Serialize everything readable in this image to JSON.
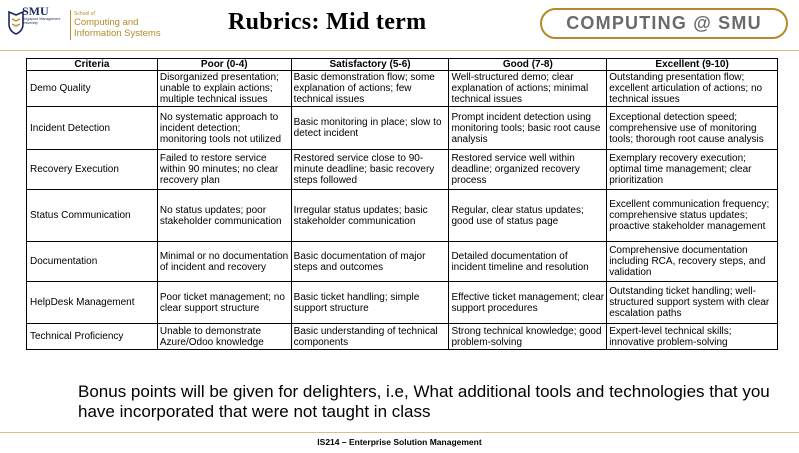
{
  "header": {
    "logo_text": "SMU",
    "logo_university": "Singapore Management University",
    "school_small": "School of",
    "school_name_line1": "Computing and",
    "school_name_line2": "Information Systems",
    "title": "Rubrics: Mid term",
    "badge": "COMPUTING @ SMU",
    "accent_color": "#b48a2b"
  },
  "table": {
    "headers": [
      "Criteria",
      "Poor (0-4)",
      "Satisfactory (5-6)",
      "Good (7-8)",
      "Excellent (9-10)"
    ],
    "rows": [
      {
        "criteria": "Demo Quality",
        "poor": "Disorganized presentation; unable to explain actions; multiple technical issues",
        "satisfactory": "Basic demonstration flow; some explanation of actions; few technical issues",
        "good": "Well-structured demo; clear explanation of actions; minimal technical issues",
        "excellent": "Outstanding presentation flow; excellent articulation of actions; no technical issues"
      },
      {
        "criteria": "Incident Detection",
        "poor": "No systematic approach to incident detection; monitoring tools not utilized",
        "satisfactory": "Basic monitoring in place; slow to detect incident",
        "good": "Prompt incident detection using monitoring tools; basic root cause analysis",
        "excellent": "Exceptional detection speed; comprehensive use of monitoring tools; thorough root cause analysis"
      },
      {
        "criteria": "Recovery Execution",
        "poor": "Failed to restore service within 90 minutes; no clear recovery plan",
        "satisfactory": "Restored service close to 90-minute deadline; basic recovery steps followed",
        "good": "Restored service well within deadline; organized recovery process",
        "excellent": "Exemplary recovery execution; optimal time management; clear prioritization"
      },
      {
        "criteria": "Status Communication",
        "poor": "No status updates; poor stakeholder communication",
        "satisfactory": "Irregular status updates; basic stakeholder communication",
        "good": "Regular, clear status updates; good use of status page",
        "excellent": "Excellent communication frequency; comprehensive status updates; proactive stakeholder management"
      },
      {
        "criteria": "Documentation",
        "poor": "Minimal or no documentation of incident and recovery",
        "satisfactory": "Basic documentation of major steps and outcomes",
        "good": "Detailed documentation of incident timeline and resolution",
        "excellent": "Comprehensive documentation including RCA, recovery steps, and validation"
      },
      {
        "criteria": "HelpDesk Management",
        "poor": "Poor ticket management; no clear support structure",
        "satisfactory": "Basic ticket handling; simple support structure",
        "good": "Effective ticket management; clear support procedures",
        "excellent": "Outstanding ticket handling; well-structured support system with clear escalation paths"
      },
      {
        "criteria": "Technical Proficiency",
        "poor": "Unable to demonstrate Azure/Odoo knowledge",
        "satisfactory": "Basic understanding of technical components",
        "good": "Strong technical knowledge; good problem-solving",
        "excellent": "Expert-level technical skills; innovative problem-solving"
      }
    ]
  },
  "bonus_text": "Bonus points will be given for delighters, i.e, What additional tools and technologies that you have incorporated that were not taught in class",
  "footer_text": "IS214 – Enterprise Solution Management"
}
